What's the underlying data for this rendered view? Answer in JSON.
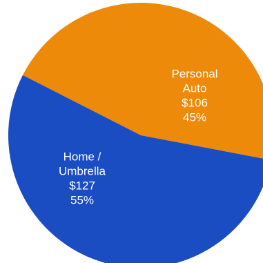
{
  "chart_data": {
    "type": "pie",
    "slices": [
      {
        "name": "Personal Auto",
        "label_lines": [
          "Personal",
          "Auto",
          "$106",
          "45%"
        ],
        "value": 106,
        "percent": 45,
        "color": "#ED8A0A"
      },
      {
        "name": "Home / Umbrella",
        "label_lines": [
          "Home /",
          "Umbrella",
          "$127",
          "55%"
        ],
        "value": 127,
        "percent": 55,
        "color": "#1A4CC2"
      }
    ],
    "start": "top-left",
    "direction": "clockwise",
    "legend": "none"
  }
}
